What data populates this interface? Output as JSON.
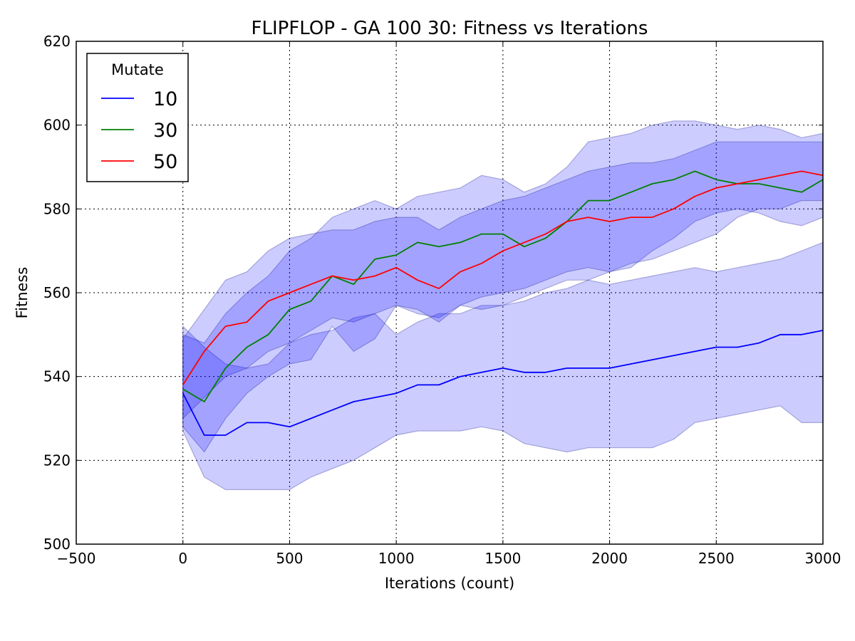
{
  "chart_data": {
    "type": "line",
    "title": "FLIPFLOP - GA 100 30: Fitness vs Iterations",
    "xlabel": "Iterations (count)",
    "ylabel": "Fitness",
    "xlim": [
      -500,
      3000
    ],
    "ylim": [
      500,
      620
    ],
    "xticks": [
      -500,
      0,
      500,
      1000,
      1500,
      2000,
      2500,
      3000
    ],
    "xtick_labels": [
      "−500",
      "0",
      "500",
      "1000",
      "1500",
      "2000",
      "2500",
      "3000"
    ],
    "yticks": [
      500,
      520,
      540,
      560,
      580,
      600,
      620
    ],
    "ytick_labels": [
      "500",
      "520",
      "540",
      "560",
      "580",
      "600",
      "620"
    ],
    "grid": true,
    "legend": {
      "title": "Mutate",
      "position": "top-left"
    },
    "x": [
      0,
      100,
      200,
      300,
      400,
      500,
      600,
      700,
      800,
      900,
      1000,
      1100,
      1200,
      1300,
      1400,
      1500,
      1600,
      1700,
      1800,
      1900,
      2000,
      2100,
      2200,
      2300,
      2400,
      2500,
      2600,
      2700,
      2800,
      2900,
      3000
    ],
    "series": [
      {
        "name": "10",
        "color": "#0000ff",
        "values": [
          536,
          526,
          526,
          529,
          529,
          528,
          530,
          532,
          534,
          535,
          536,
          538,
          538,
          540,
          541,
          542,
          541,
          541,
          542,
          542,
          542,
          543,
          544,
          545,
          546,
          547,
          547,
          548,
          550,
          550,
          551
        ],
        "lower": [
          527,
          516,
          513,
          513,
          513,
          513,
          516,
          518,
          520,
          523,
          526,
          527,
          527,
          527,
          528,
          527,
          524,
          523,
          522,
          523,
          523,
          523,
          523,
          525,
          529,
          530,
          531,
          532,
          533,
          529,
          529
        ],
        "upper": [
          552,
          547,
          543,
          542,
          543,
          548,
          550,
          551,
          554,
          555,
          550,
          553,
          555,
          555,
          557,
          557,
          558,
          560,
          561,
          563,
          562,
          563,
          564,
          565,
          566,
          565,
          566,
          567,
          568,
          570,
          572
        ]
      },
      {
        "name": "30",
        "color": "#008000",
        "values": [
          537,
          534,
          542,
          547,
          550,
          556,
          558,
          564,
          562,
          568,
          569,
          572,
          571,
          572,
          574,
          574,
          571,
          573,
          577,
          582,
          582,
          584,
          586,
          587,
          589,
          587,
          586,
          586,
          585,
          584,
          587
        ],
        "lower": [
          528,
          522,
          530,
          536,
          540,
          543,
          544,
          552,
          546,
          549,
          557,
          555,
          554,
          557,
          556,
          557,
          559,
          561,
          563,
          563,
          565,
          566,
          570,
          573,
          577,
          579,
          580,
          579,
          577,
          576,
          578
        ],
        "upper": [
          550,
          548,
          555,
          560,
          564,
          570,
          573,
          578,
          580,
          582,
          580,
          583,
          584,
          585,
          588,
          587,
          584,
          586,
          590,
          596,
          597,
          598,
          600,
          601,
          601,
          600,
          599,
          600,
          599,
          597,
          598
        ]
      },
      {
        "name": "50",
        "color": "#ff0000",
        "values": [
          538,
          546,
          552,
          553,
          558,
          560,
          562,
          564,
          563,
          564,
          566,
          563,
          561,
          565,
          567,
          570,
          572,
          574,
          577,
          578,
          577,
          578,
          578,
          580,
          583,
          585,
          586,
          587,
          588,
          589,
          588
        ],
        "lower": [
          530,
          535,
          540,
          542,
          546,
          548,
          551,
          554,
          553,
          555,
          557,
          556,
          553,
          557,
          559,
          560,
          561,
          563,
          565,
          566,
          565,
          567,
          568,
          570,
          572,
          574,
          578,
          580,
          580,
          582,
          582
        ],
        "upper": [
          549,
          556,
          563,
          565,
          570,
          573,
          574,
          575,
          575,
          577,
          578,
          578,
          575,
          578,
          580,
          582,
          583,
          585,
          587,
          589,
          590,
          591,
          591,
          592,
          594,
          596,
          596,
          596,
          596,
          596,
          596
        ]
      }
    ]
  }
}
